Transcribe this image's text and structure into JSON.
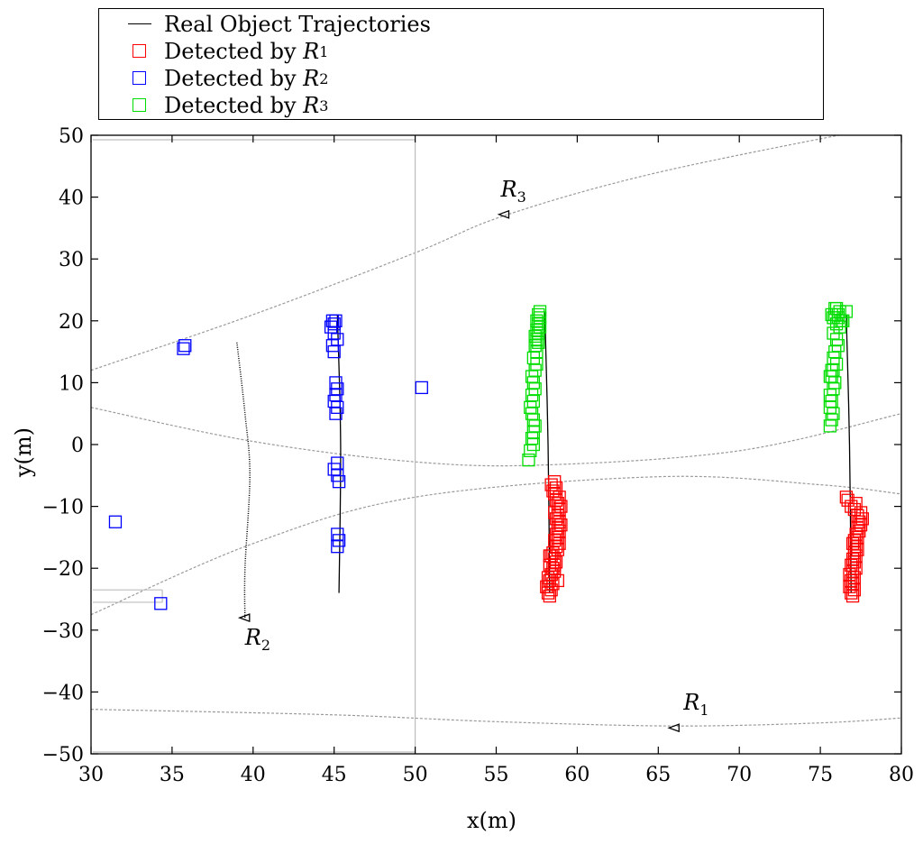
{
  "chart_data": {
    "type": "scatter",
    "xlabel": "x(m)",
    "ylabel": "y(m)",
    "xlim": [
      30,
      80
    ],
    "ylim": [
      -50,
      50
    ],
    "xticks": [
      30,
      35,
      40,
      45,
      50,
      55,
      60,
      65,
      70,
      75,
      80
    ],
    "yticks": [
      50,
      40,
      30,
      20,
      10,
      0,
      -10,
      -20,
      -30,
      -40,
      -50
    ],
    "legend": {
      "placement": "top",
      "entries": [
        {
          "label": "Real Object Trajectories",
          "color": "#000000",
          "marker": "line"
        },
        {
          "label": "Detected by ",
          "sub_label": "R",
          "subscript": "1",
          "color": "#ff0000",
          "marker": "square"
        },
        {
          "label": "Detected by ",
          "sub_label": "R",
          "subscript": "2",
          "color": "#0000ff",
          "marker": "square"
        },
        {
          "label": "Detected by ",
          "sub_label": "R",
          "subscript": "3",
          "color": "#00dd00",
          "marker": "square"
        }
      ]
    },
    "radars": [
      {
        "name": "R",
        "subscript": "1",
        "x": 66,
        "y": -45.8
      },
      {
        "name": "R",
        "subscript": "2",
        "x": 39.5,
        "y": -28
      },
      {
        "name": "R",
        "subscript": "3",
        "x": 55.5,
        "y": 37.2
      }
    ],
    "trajectories": [
      {
        "name": "Real Object Trajectories",
        "color": "#000000",
        "x": [
          45.2,
          45.4,
          45.3
        ],
        "y": [
          21,
          0,
          -24
        ]
      },
      {
        "name": "Real Object Trajectories",
        "color": "#000000",
        "x": [
          58.0,
          58.2,
          58.3
        ],
        "y": [
          21.5,
          0,
          -24
        ]
      },
      {
        "name": "Real Object Trajectories",
        "color": "#000000",
        "x": [
          76.6,
          76.8,
          76.9
        ],
        "y": [
          21,
          0,
          -24
        ]
      }
    ],
    "coverage_curves": [
      {
        "x": [
          30,
          40,
          50,
          55.5,
          65,
          80
        ],
        "y": [
          12,
          21,
          31,
          37,
          44,
          52
        ]
      },
      {
        "x": [
          30,
          40,
          50,
          58,
          70,
          80
        ],
        "y": [
          6,
          0.5,
          -2.8,
          -3.3,
          -1,
          5
        ]
      },
      {
        "x": [
          30,
          40,
          50,
          65,
          75,
          80
        ],
        "y": [
          -27.5,
          -16,
          -8.5,
          -5.2,
          -6.5,
          -8
        ]
      },
      {
        "x": [
          30,
          45,
          55,
          66,
          75,
          80
        ],
        "y": [
          -42.8,
          -43.7,
          -44.8,
          -45.5,
          -45,
          -44.2
        ]
      }
    ],
    "r2_fan": {
      "x": [
        39.0,
        39.5,
        39.8,
        39.5,
        39.5
      ],
      "y": [
        16.5,
        5,
        -5,
        -20,
        -28.5
      ]
    },
    "series": [
      {
        "name": "Detected by R1",
        "color": "#ff0000",
        "x": [
          58.3,
          58.2,
          58.4,
          58.1,
          58.5,
          58.3,
          58.2,
          58.4,
          58.6,
          58.5,
          58.3,
          58.7,
          58.6,
          58.4,
          58.5,
          58.8,
          58.7,
          58.9,
          58.6,
          58.8,
          58.7,
          58.9,
          58.8,
          59.0,
          58.9,
          58.7,
          58.8,
          58.6,
          58.9,
          59.0,
          58.8,
          58.7,
          58.9,
          58.6,
          58.5,
          58.7,
          58.4,
          58.6,
          58.8,
          58.5,
          58.3,
          58.4,
          58.2,
          58.6,
          77.0,
          76.9,
          77.1,
          76.8,
          77.0,
          76.9,
          77.1,
          76.8,
          77.0,
          77.2,
          76.9,
          77.1,
          77.0,
          77.2,
          77.1,
          77.3,
          77.2,
          77.0,
          77.1,
          77.3,
          77.2,
          77.4,
          77.3,
          77.5,
          77.4,
          77.6,
          77.3,
          77.5,
          77.1,
          76.9,
          77.2,
          76.7,
          76.6
        ],
        "y": [
          -24.5,
          -24,
          -23.5,
          -23,
          -22.5,
          -22,
          -21.5,
          -21,
          -20.5,
          -20,
          -19.5,
          -19,
          -18.5,
          -18,
          -17.5,
          -17,
          -16.5,
          -16,
          -15.5,
          -15,
          -14.5,
          -14,
          -13.5,
          -13,
          -12.5,
          -12,
          -11.5,
          -11,
          -10.5,
          -10,
          -9.5,
          -9,
          -8.5,
          -8,
          -7.5,
          -7,
          -6.5,
          -6,
          -22,
          -20,
          -18,
          -21,
          -23,
          -19.5,
          -24.5,
          -24,
          -23.5,
          -23,
          -22.5,
          -22,
          -21.5,
          -21,
          -20.5,
          -20,
          -19.5,
          -19,
          -18.5,
          -18,
          -17.5,
          -17,
          -16.5,
          -16,
          -15.5,
          -15,
          -14.5,
          -14,
          -13.5,
          -13,
          -12.5,
          -12,
          -11.5,
          -11,
          -10.5,
          -10,
          -9.5,
          -9,
          -8.5
        ]
      },
      {
        "name": "Detected by R2",
        "color": "#0000ff",
        "x": [
          44.9,
          45.0,
          45.1,
          44.8,
          45.0,
          45.2,
          44.9,
          45.0,
          45.1,
          45.2,
          45.1,
          45.0,
          45.2,
          45.1,
          45.2,
          45.0,
          45.2,
          45.3,
          45.2,
          45.3,
          45.2,
          35.8,
          35.7,
          50.4,
          31.5,
          34.3
        ],
        "y": [
          20,
          19.5,
          20,
          19,
          18,
          17,
          16,
          15,
          10,
          9,
          8,
          7,
          6,
          5,
          -3,
          -4,
          -5,
          -6,
          -14.5,
          -15.5,
          -16.5,
          16,
          15.5,
          9.2,
          -12.5,
          -25.7
        ]
      },
      {
        "name": "Detected by R3",
        "color": "#00dd00",
        "x": [
          57.7,
          57.6,
          57.7,
          57.5,
          57.6,
          57.7,
          57.5,
          57.6,
          57.4,
          57.5,
          57.6,
          57.4,
          57.5,
          57.3,
          57.5,
          57.4,
          57.2,
          57.3,
          57.4,
          57.2,
          57.3,
          57.1,
          57.2,
          57.3,
          57.4,
          57.3,
          57.2,
          57.3,
          57.1,
          57.0,
          76.0,
          76.2,
          75.9,
          76.1,
          76.3,
          76.0,
          76.2,
          75.8,
          76.0,
          76.1,
          75.9,
          75.8,
          76.0,
          75.8,
          75.7,
          75.9,
          75.8,
          75.6,
          75.7,
          75.6,
          75.8,
          75.7,
          75.6,
          75.7,
          75.6,
          75.7,
          75.8,
          76.4,
          76.6,
          75.9,
          76.1
        ],
        "y": [
          21.5,
          21,
          20.5,
          20,
          19.5,
          19,
          18.5,
          18,
          17.5,
          17,
          16.5,
          16,
          15,
          14,
          13,
          12,
          11,
          10,
          9,
          8,
          7,
          6,
          5,
          4,
          3,
          2,
          1,
          0,
          -1,
          -2.5,
          22,
          21.5,
          21,
          20.5,
          20,
          19.5,
          19,
          18,
          17,
          16,
          15,
          14,
          13,
          12,
          11,
          10,
          9,
          8,
          7,
          6,
          5,
          4,
          3,
          12,
          11,
          21,
          20.5,
          20,
          21.5,
          22,
          21
        ]
      }
    ]
  }
}
